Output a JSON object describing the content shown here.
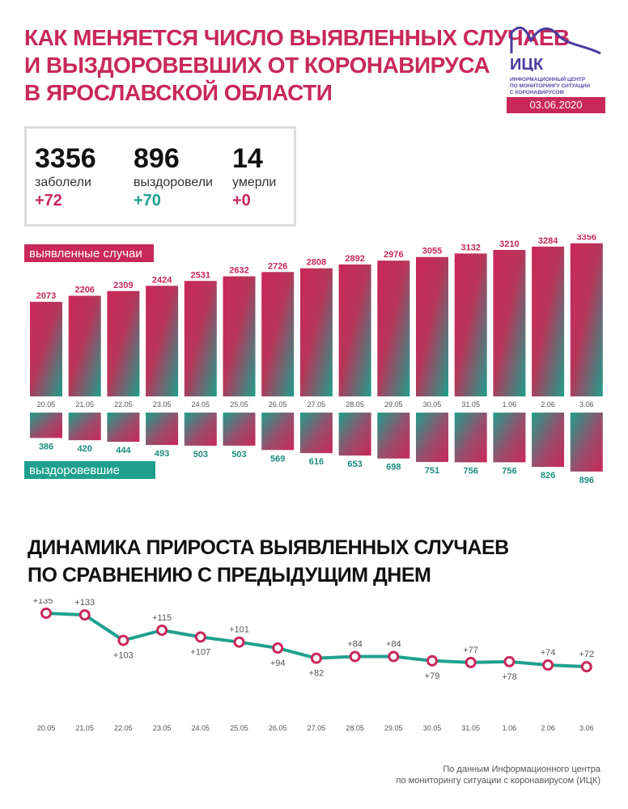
{
  "title": {
    "line1": "КАК МЕНЯЕТСЯ ЧИСЛО ВЫЯВЛЕННЫХ СЛУЧАЕВ",
    "line2": "И ВЫЗДОРОВЕВШИХ ОТ КОРОНАВИРУСА",
    "line3": "В ЯРОСЛАВСКОЙ ОБЛАСТИ"
  },
  "logo": {
    "name": "ИЦК",
    "sub1": "ИНФОРМАЦИОННЫЙ ЦЕНТР",
    "sub2": "ПО МОНИТОРИНГУ СИТУАЦИИ",
    "sub3": "С КОРОНАВИРУСОМ"
  },
  "date": "03.06.2020",
  "colors": {
    "accent": "#c8285a",
    "teal": "#1fa08f",
    "logo": "#4b3ba0"
  },
  "stats": {
    "infected": {
      "value": "3356",
      "label": "заболели",
      "delta": "+72"
    },
    "recovered": {
      "value": "896",
      "label": "выздоровели",
      "delta": "+70"
    },
    "died": {
      "value": "14",
      "label": "умерли",
      "delta": "+0"
    }
  },
  "chart_data": [
    {
      "type": "bar",
      "categories": [
        "20.05",
        "21.05",
        "22.05",
        "23.05",
        "24.05",
        "25.05",
        "26.05",
        "27.05",
        "28.05",
        "29.05",
        "30.05",
        "31.05",
        "1.06",
        "2.06",
        "3.06"
      ],
      "series": [
        {
          "name": "выявленные случаи",
          "values": [
            2073,
            2206,
            2309,
            2424,
            2531,
            2632,
            2726,
            2808,
            2892,
            2976,
            3055,
            3132,
            3210,
            3284,
            3356
          ]
        },
        {
          "name": "выздоровевшие",
          "values": [
            386,
            420,
            444,
            493,
            503,
            503,
            569,
            616,
            653,
            698,
            751,
            756,
            756,
            826,
            896
          ]
        }
      ],
      "legend": [
        "выявленные случаи",
        "выздоровевшие"
      ]
    },
    {
      "type": "line",
      "title": "ДИНАМИКА ПРИРОСТА ВЫЯВЛЕННЫХ СЛУЧАЕВ ПО СРАВНЕНИЮ С ПРЕДЫДУЩИМ ДНЕМ",
      "title_line1": "ДИНАМИКА ПРИРОСТА ВЫЯВЛЕННЫХ СЛУЧАЕВ",
      "title_line2": "ПО СРАВНЕНИЮ С ПРЕДЫДУЩИМ ДНЕМ",
      "categories": [
        "20.05",
        "21.05",
        "22.05",
        "23.05",
        "24.05",
        "25.05",
        "26.05",
        "27.05",
        "28.05",
        "29.05",
        "30.05",
        "31.05",
        "1.06",
        "2.06",
        "3.06"
      ],
      "values": [
        135,
        133,
        103,
        115,
        107,
        101,
        94,
        82,
        84,
        84,
        79,
        77,
        78,
        74,
        72
      ],
      "labels": [
        "+135",
        "+133",
        "+103",
        "+115",
        "+107",
        "+101",
        "+94",
        "+82",
        "+84",
        "+84",
        "+79",
        "+77",
        "+78",
        "+74",
        "+72"
      ]
    }
  ],
  "source": {
    "line1": "По данным Информационного центра",
    "line2": "по мониторингу ситуации с коронавирусом (ИЦК)"
  }
}
